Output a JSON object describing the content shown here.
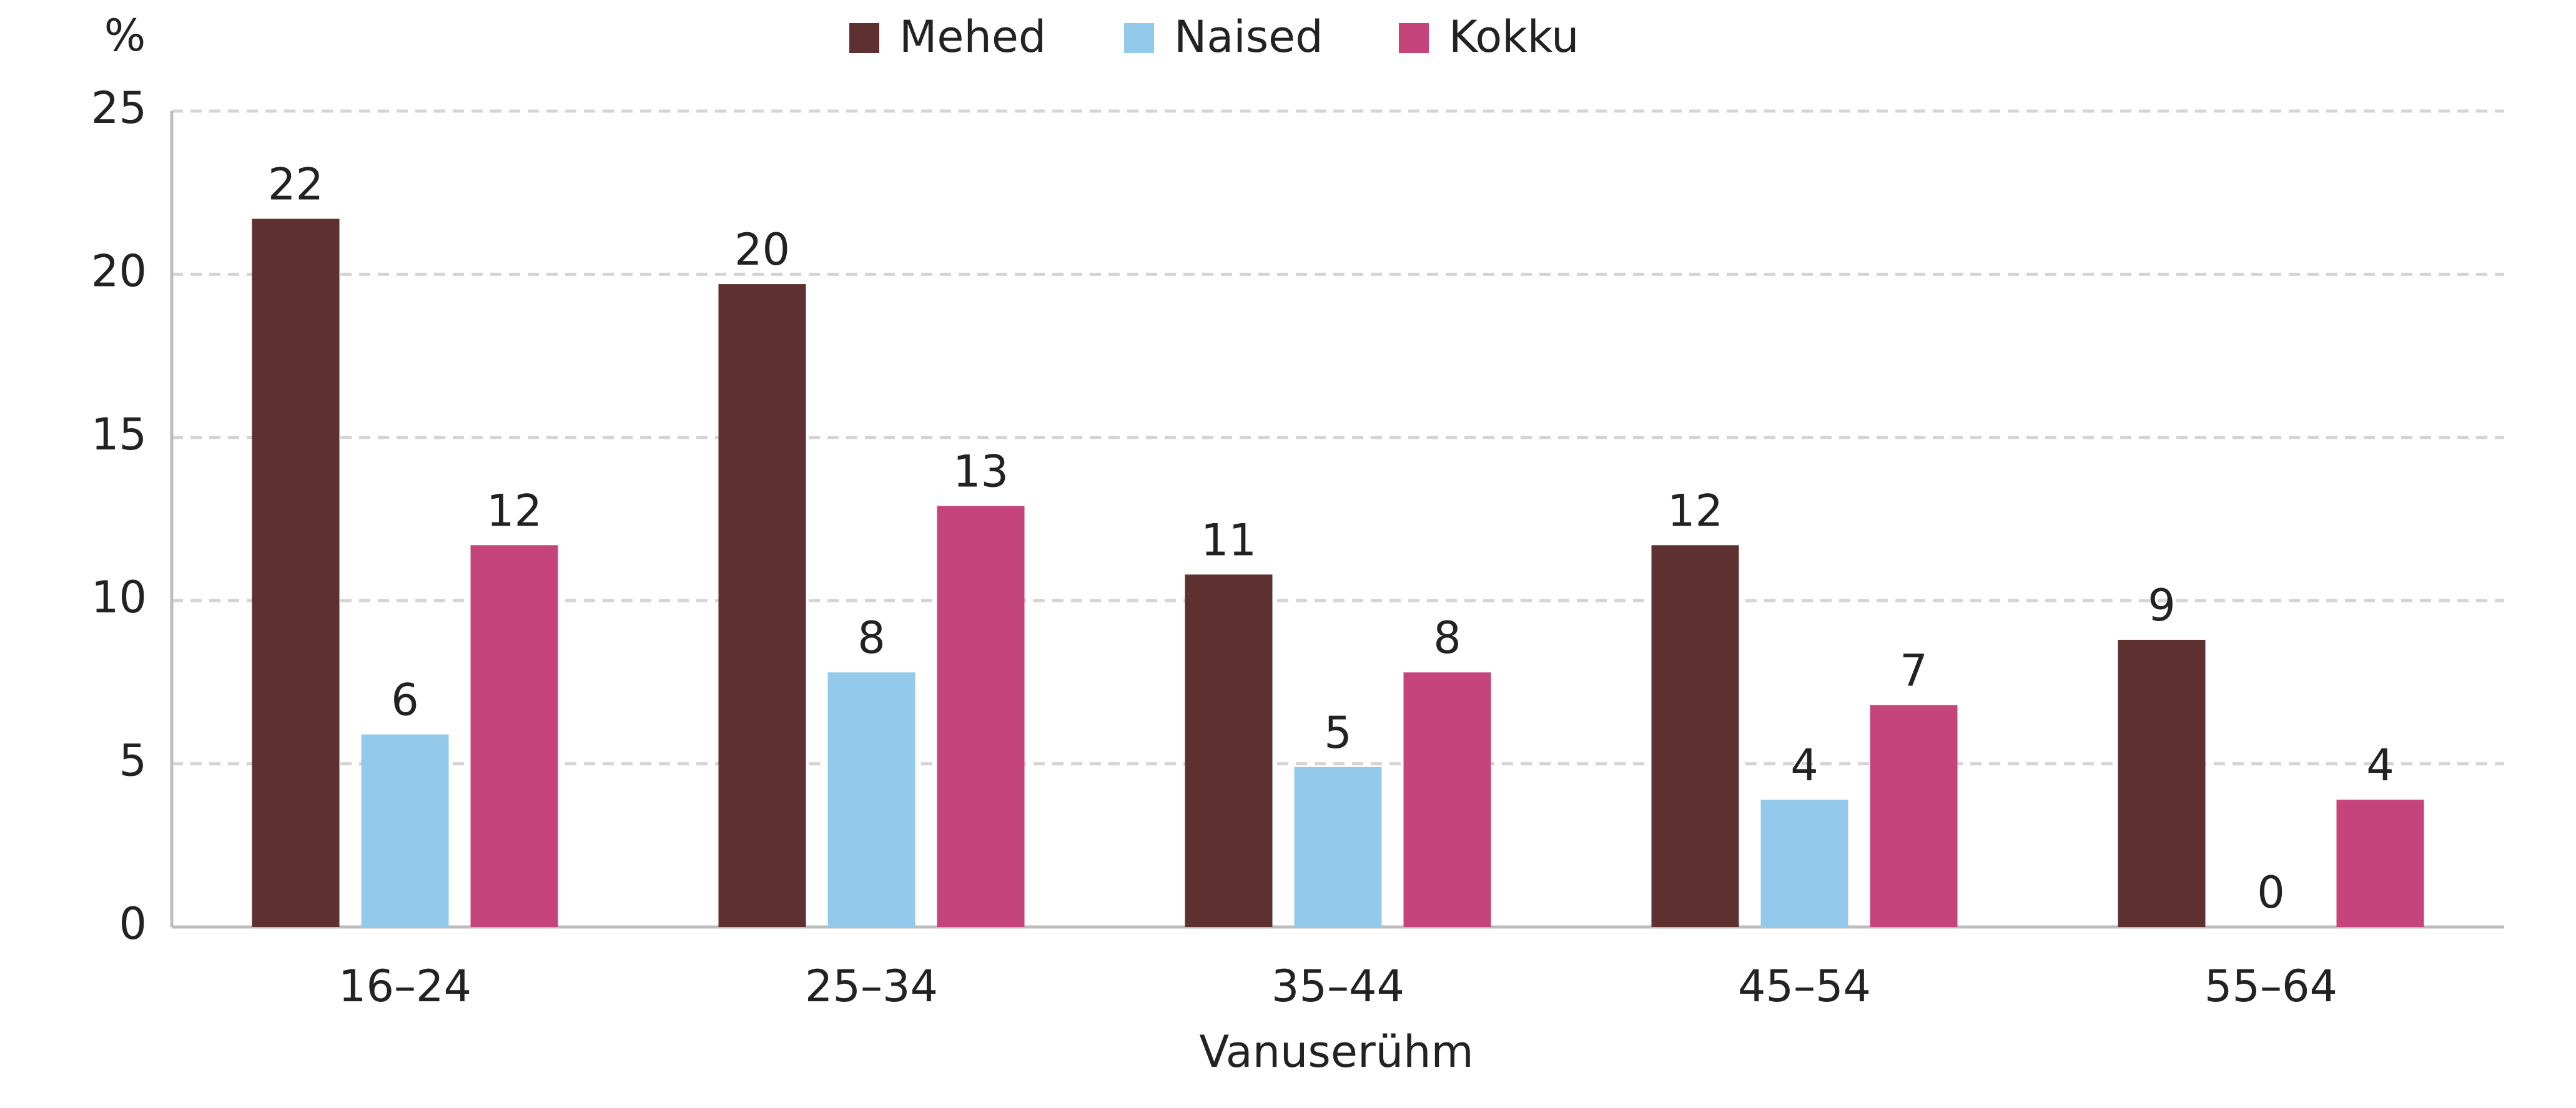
{
  "chart_data": {
    "type": "bar",
    "y_label": "%",
    "x_label": "Vanuserühm",
    "categories": [
      "16–24",
      "25–34",
      "35–44",
      "45–54",
      "55–64"
    ],
    "series": [
      {
        "name": "Mehed",
        "color": "#5e3130",
        "values": [
          21.7,
          19.7,
          10.8,
          11.7,
          8.8
        ],
        "value_labels": [
          "22",
          "20",
          "11",
          "12",
          "9"
        ]
      },
      {
        "name": "Naised",
        "color": "#93c9eb",
        "values": [
          5.9,
          7.8,
          4.9,
          3.9,
          0
        ],
        "value_labels": [
          "6",
          "8",
          "5",
          "4",
          "0"
        ]
      },
      {
        "name": "Kokku",
        "color": "#c5447c",
        "values": [
          11.7,
          12.9,
          7.8,
          6.8,
          3.9
        ],
        "value_labels": [
          "12",
          "13",
          "8",
          "7",
          "4"
        ]
      }
    ],
    "ylim": [
      0,
      25
    ],
    "yticks": [
      0,
      5,
      10,
      15,
      20,
      25
    ],
    "grid": true,
    "legend": "top"
  }
}
